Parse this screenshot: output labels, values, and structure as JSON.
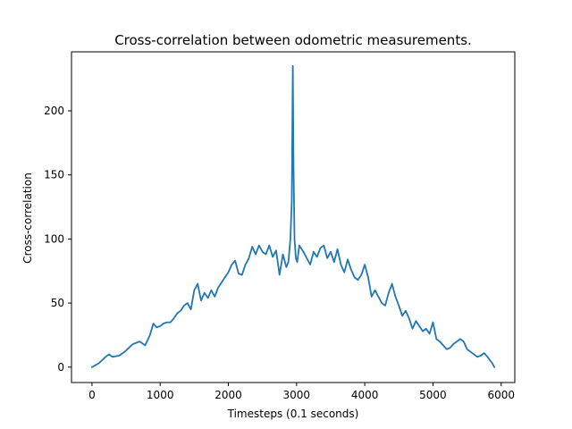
{
  "chart_data": {
    "type": "line",
    "title": "Cross-correlation between odometric measurements.",
    "xlabel": "Timesteps (0.1 seconds)",
    "ylabel": "Cross-correlation",
    "xlim": [
      -300,
      6200
    ],
    "ylim": [
      -12,
      246
    ],
    "xticks": [
      0,
      1000,
      2000,
      3000,
      4000,
      5000,
      6000
    ],
    "yticks": [
      0,
      50,
      100,
      150,
      200
    ],
    "grid": false,
    "series": [
      {
        "color": "#1f77b4",
        "x": [
          0,
          100,
          200,
          250,
          300,
          400,
          480,
          520,
          600,
          700,
          780,
          850,
          900,
          950,
          1000,
          1050,
          1100,
          1150,
          1200,
          1250,
          1300,
          1350,
          1400,
          1450,
          1500,
          1550,
          1600,
          1650,
          1700,
          1750,
          1800,
          1850,
          1900,
          1950,
          2000,
          2050,
          2100,
          2150,
          2200,
          2250,
          2300,
          2350,
          2400,
          2450,
          2500,
          2550,
          2600,
          2650,
          2700,
          2750,
          2800,
          2850,
          2880,
          2910,
          2930,
          2945,
          2955,
          2970,
          2990,
          3010,
          3040,
          3100,
          3150,
          3200,
          3250,
          3300,
          3350,
          3400,
          3450,
          3500,
          3550,
          3600,
          3650,
          3700,
          3750,
          3800,
          3850,
          3900,
          3950,
          4000,
          4050,
          4100,
          4150,
          4200,
          4250,
          4300,
          4350,
          4400,
          4450,
          4500,
          4550,
          4600,
          4650,
          4700,
          4750,
          4800,
          4850,
          4900,
          4950,
          5000,
          5050,
          5100,
          5150,
          5200,
          5250,
          5300,
          5400,
          5450,
          5500,
          5550,
          5600,
          5650,
          5700,
          5750,
          5800,
          5870,
          5900
        ],
        "y": [
          0,
          3,
          8,
          10,
          8,
          9,
          12,
          14,
          18,
          20,
          17,
          25,
          34,
          31,
          32,
          34,
          35,
          35,
          38,
          42,
          44,
          48,
          50,
          45,
          60,
          65,
          52,
          58,
          54,
          60,
          55,
          62,
          66,
          70,
          74,
          80,
          83,
          73,
          72,
          80,
          85,
          94,
          88,
          95,
          90,
          88,
          95,
          86,
          91,
          72,
          88,
          78,
          82,
          100,
          130,
          235,
          160,
          100,
          85,
          82,
          95,
          90,
          85,
          80,
          90,
          86,
          93,
          95,
          85,
          90,
          82,
          92,
          80,
          74,
          84,
          76,
          70,
          68,
          72,
          80,
          70,
          55,
          60,
          55,
          50,
          48,
          58,
          65,
          55,
          48,
          40,
          44,
          38,
          30,
          36,
          32,
          28,
          30,
          26,
          35,
          22,
          20,
          17,
          14,
          15,
          18,
          22,
          20,
          14,
          12,
          10,
          8,
          9,
          11,
          8,
          3,
          0
        ]
      }
    ]
  }
}
